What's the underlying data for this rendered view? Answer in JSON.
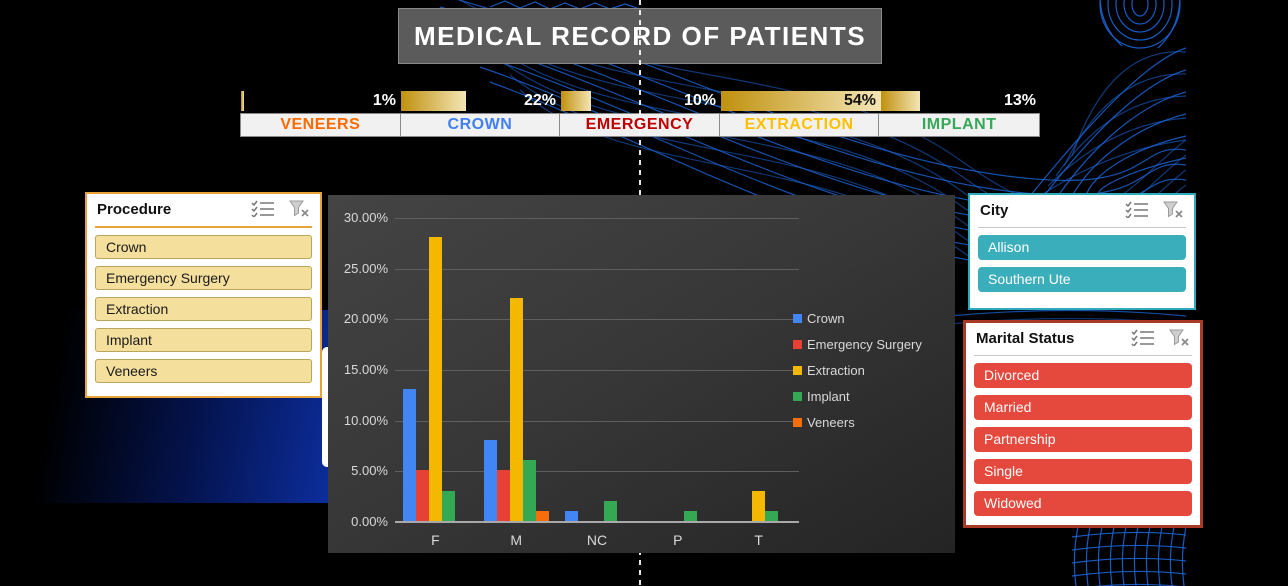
{
  "title": "MEDICAL RECORD OF PATIENTS",
  "summary_table": {
    "bar_scale_max": 54,
    "bar_gradient": [
      "#C0910F",
      "#F3E5B5"
    ],
    "columns": [
      {
        "label": "VENEERS",
        "display": "1%",
        "value": 1,
        "label_color": "#FF6A00",
        "value_on_bar": false
      },
      {
        "label": "CROWN",
        "display": "22%",
        "value": 22,
        "label_color": "#4080F4",
        "value_on_bar": false
      },
      {
        "label": "EMERGENCY",
        "display": "10%",
        "value": 10,
        "label_color": "#C00000",
        "value_on_bar": false
      },
      {
        "label": "EXTRACTION",
        "display": "54%",
        "value": 54,
        "label_color": "#FFC000",
        "value_on_bar": true
      },
      {
        "label": "IMPLANT",
        "display": "13%",
        "value": 13,
        "label_color": "#35A859",
        "value_on_bar": false
      }
    ]
  },
  "chart_data": {
    "type": "bar",
    "categories": [
      "F",
      "M",
      "NC",
      "P",
      "T"
    ],
    "series": [
      {
        "name": "Crown",
        "color": "#4285F4",
        "values": [
          13,
          8,
          1,
          0,
          0
        ]
      },
      {
        "name": "Emergency Surgery",
        "color": "#E74034",
        "values": [
          5,
          5,
          0,
          0,
          0
        ]
      },
      {
        "name": "Extraction",
        "color": "#F5B800",
        "values": [
          28,
          22,
          0,
          0,
          3
        ]
      },
      {
        "name": "Implant",
        "color": "#34A853",
        "values": [
          3,
          6,
          2,
          1,
          1
        ]
      },
      {
        "name": "Veneers",
        "color": "#F56E0B",
        "values": [
          0,
          1,
          0,
          0,
          0
        ]
      }
    ],
    "y_ticks": [
      "30.00%",
      "25.00%",
      "20.00%",
      "15.00%",
      "10.00%",
      "5.00%",
      "0.00%"
    ],
    "ylim": [
      0,
      30
    ],
    "unit": "percent",
    "grid": true,
    "legend_position": "right",
    "background": "dark"
  },
  "slicers": [
    {
      "title": "Procedure",
      "items": [
        "Crown",
        "Emergency Surgery",
        "Extraction",
        "Implant",
        "Veneers"
      ],
      "accent_color": "#E8A33B",
      "item_color": "#F4DF9D",
      "item_text_color": "#1A1A1A"
    },
    {
      "title": "City",
      "items": [
        "Allison",
        "Southern Ute"
      ],
      "accent_color": "#2FA9BC",
      "item_color": "#3BAEBC",
      "item_text_color": "#FDFDFD"
    },
    {
      "title": "Marital Status",
      "items": [
        "Divorced",
        "Married",
        "Partnership",
        "Single",
        "Widowed"
      ],
      "accent_color": "#A93A26",
      "item_color": "#E5483C",
      "item_text_color": "#FDFDFD"
    }
  ]
}
